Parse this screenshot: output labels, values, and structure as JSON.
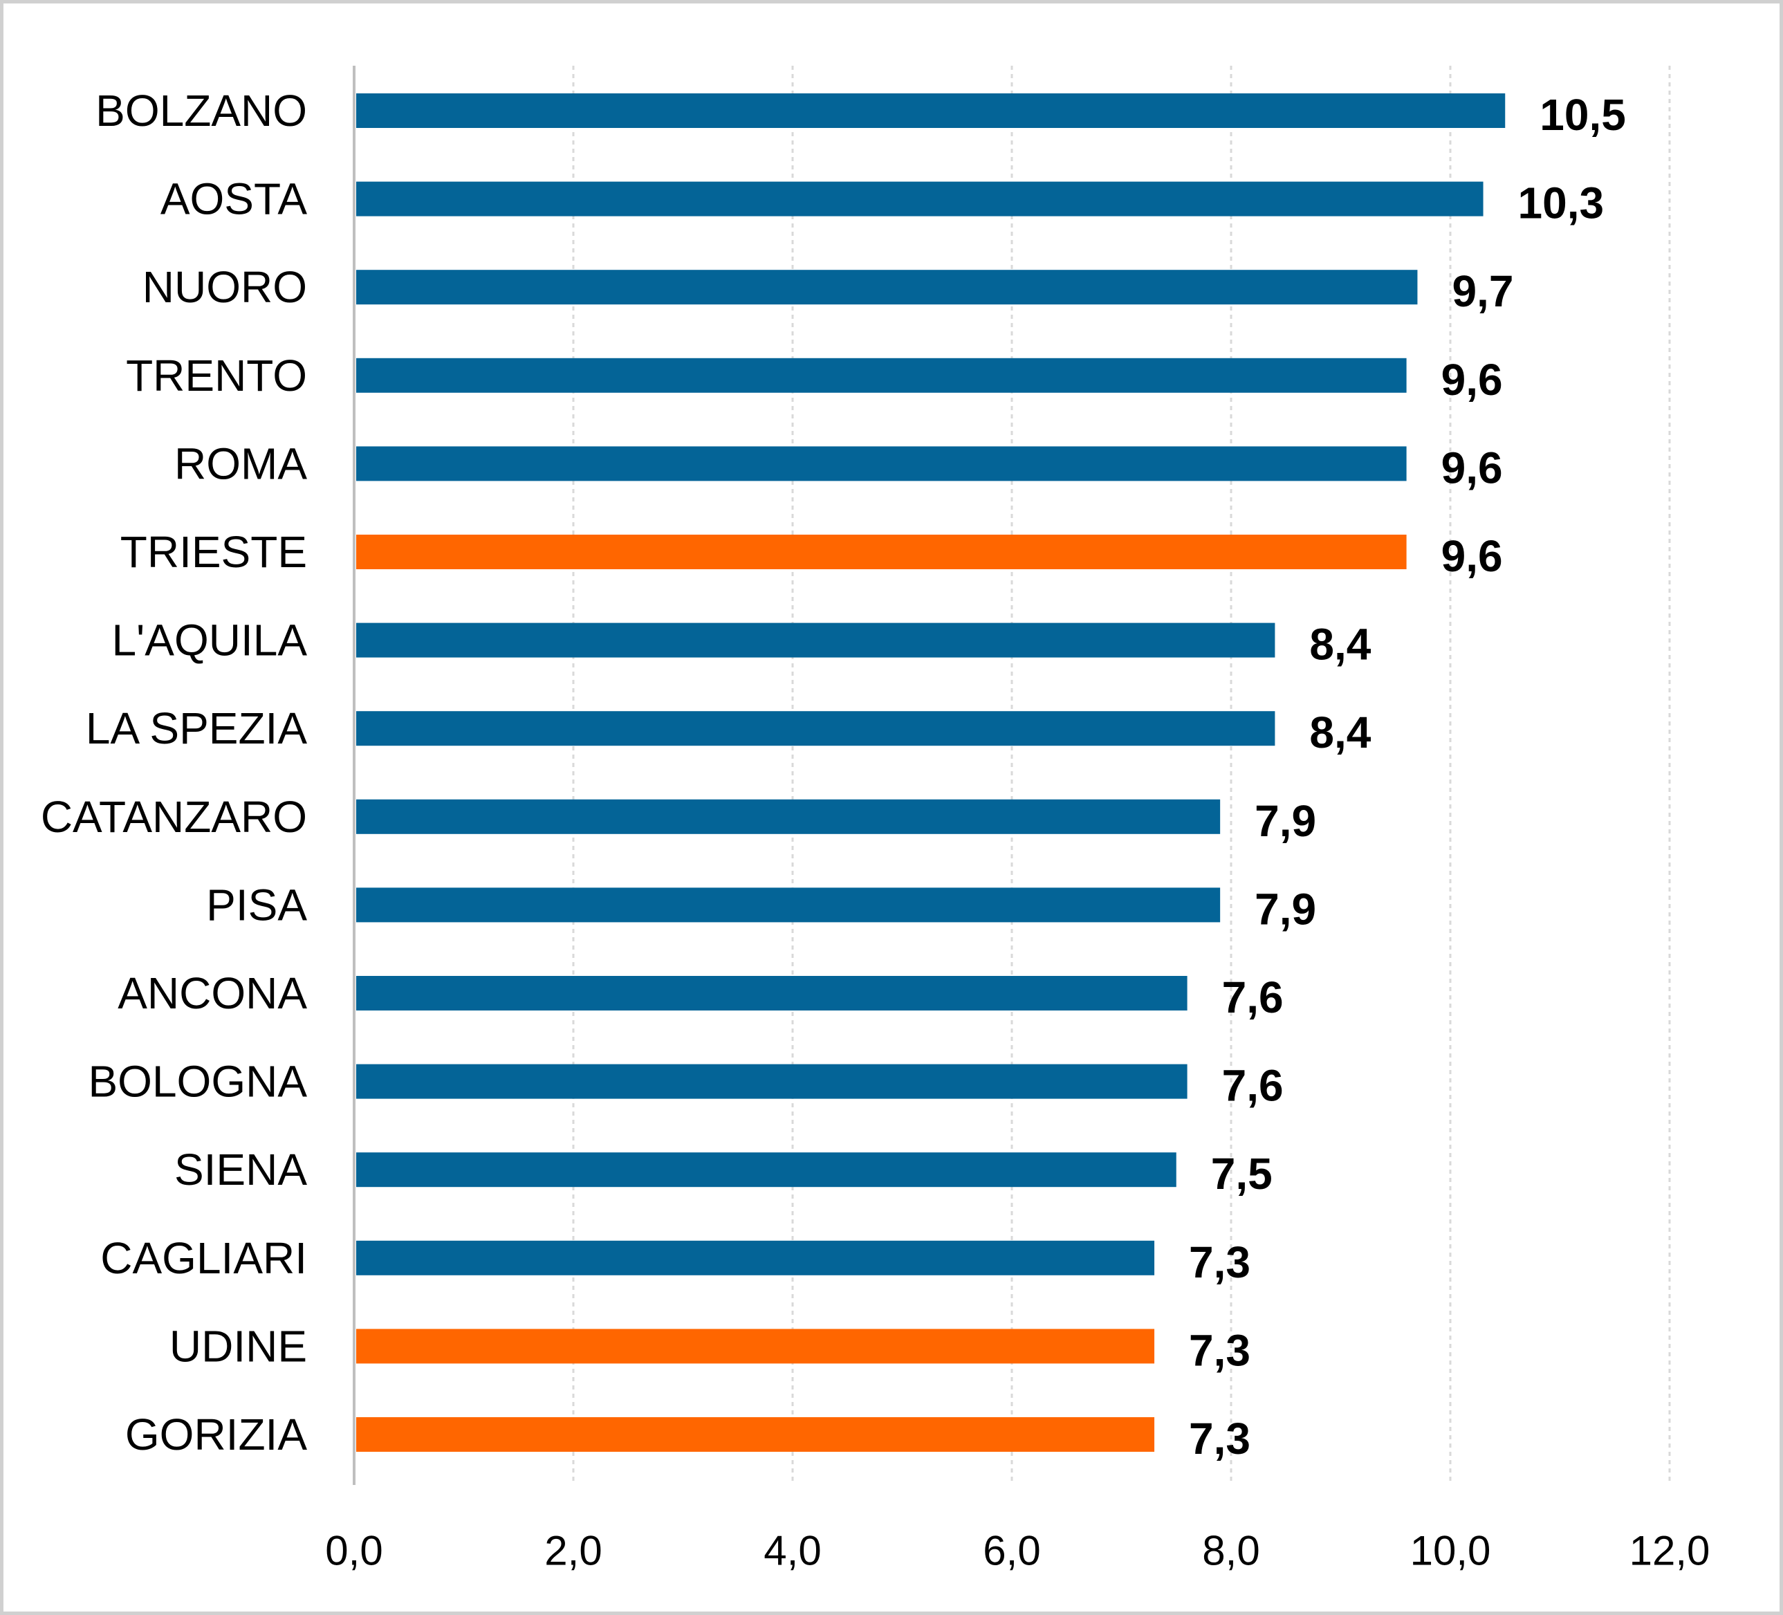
{
  "chart_data": {
    "type": "bar",
    "orientation": "horizontal",
    "title": "",
    "xlabel": "",
    "ylabel": "",
    "categories": [
      "BOLZANO",
      "AOSTA",
      "NUORO",
      "TRENTO",
      "ROMA",
      "TRIESTE",
      "L'AQUILA",
      "LA SPEZIA",
      "CATANZARO",
      "PISA",
      "ANCONA",
      "BOLOGNA",
      "SIENA",
      "CAGLIARI",
      "UDINE",
      "GORIZIA"
    ],
    "values": [
      10.5,
      10.3,
      9.7,
      9.6,
      9.6,
      9.6,
      8.4,
      8.4,
      7.9,
      7.9,
      7.6,
      7.6,
      7.5,
      7.3,
      7.3,
      7.3
    ],
    "value_labels": [
      "10,5",
      "10,3",
      "9,7",
      "9,6",
      "9,6",
      "9,6",
      "8,4",
      "8,4",
      "7,9",
      "7,9",
      "7,6",
      "7,6",
      "7,5",
      "7,3",
      "7,3",
      "7,3"
    ],
    "highlighted": [
      "TRIESTE",
      "UDINE",
      "GORIZIA"
    ],
    "colors": {
      "default": "#046497",
      "highlight": "#ff6600",
      "grid": "#d9d9d9",
      "axis": "#bfbfbf"
    },
    "xlim": [
      0,
      12
    ],
    "x_ticks": [
      0,
      2,
      4,
      6,
      8,
      10,
      12
    ],
    "x_tick_labels": [
      "0,0",
      "2,0",
      "4,0",
      "6,0",
      "8,0",
      "10,0",
      "12,0"
    ],
    "grid": "vertical dashed",
    "legend": "none"
  }
}
